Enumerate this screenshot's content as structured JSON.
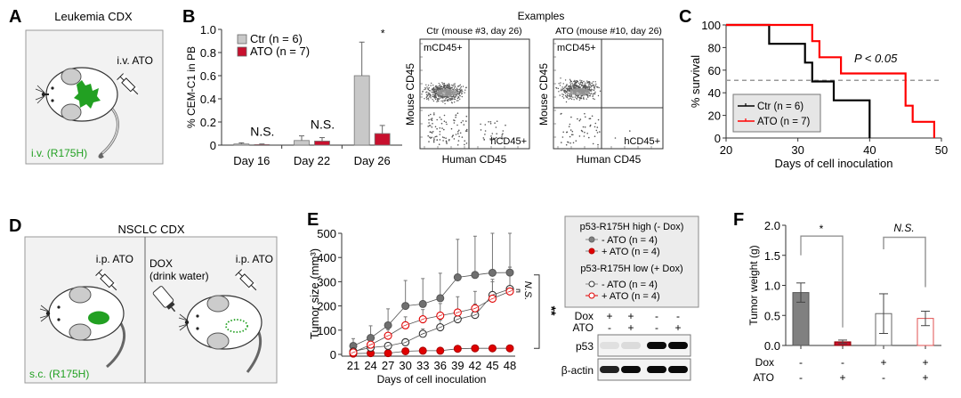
{
  "panel_labels": {
    "a": "A",
    "b": "B",
    "c": "C",
    "d": "D",
    "e": "E",
    "f": "F"
  },
  "panel_a": {
    "title": "Leukemia CDX",
    "injection_label": "i.v. ATO",
    "cell_label": "i.v. (R175H)",
    "colors": {
      "tumor": "#22a022",
      "box_bg": "#f2f2f2",
      "box_border": "#888888"
    }
  },
  "panel_d": {
    "title": "NSCLC CDX",
    "left": {
      "injection_label": "i.p. ATO",
      "cell_label": "s.c. (R175H)"
    },
    "right": {
      "dox_label": "DOX",
      "dox_sublabel": "(drink water)",
      "injection_label": "i.p. ATO"
    }
  },
  "flow": {
    "title": "Examples",
    "xlabel": "Human CD45",
    "ylabel": "Mouse CD45",
    "plots": [
      {
        "title": "Ctr (mouse #3, day 26)",
        "q_upper_left": "mCD45+",
        "q_lower_right": "hCD45+"
      },
      {
        "title": "ATO (mouse #10, day 26)",
        "q_upper_left": "mCD45+",
        "q_lower_right": "hCD45+"
      }
    ]
  },
  "western": {
    "row_labels": [
      "Dox",
      "ATO"
    ],
    "lanes": [
      {
        "dox": "+",
        "ato": "-"
      },
      {
        "dox": "+",
        "ato": "+"
      },
      {
        "dox": "-",
        "ato": "-"
      },
      {
        "dox": "-",
        "ato": "+"
      }
    ],
    "blots": [
      {
        "name": "p53",
        "intensity": [
          0.05,
          0.07,
          1.0,
          1.0
        ]
      },
      {
        "name": "β-actin",
        "intensity": [
          0.9,
          1.0,
          1.0,
          1.0
        ]
      }
    ]
  },
  "chart_data": [
    {
      "id": "B",
      "type": "bar",
      "title": "",
      "xlabel": "",
      "ylabel": "% CEM-C1 in PB",
      "ylim": [
        0,
        1.0
      ],
      "yticks": [
        "0",
        "0.2",
        "0.4",
        "0.6",
        "0.8",
        "1.0"
      ],
      "categories": [
        "Day 16",
        "Day 22",
        "Day 26"
      ],
      "series": [
        {
          "name": "Ctr (n =  6)",
          "color": "#c8c8c8",
          "values": [
            0.01,
            0.04,
            0.6
          ],
          "errors": [
            0.01,
            0.04,
            0.29
          ]
        },
        {
          "name": "ATO (n = 7)",
          "color": "#c8102e",
          "values": [
            0.005,
            0.035,
            0.1
          ],
          "errors": [
            0.005,
            0.03,
            0.07
          ]
        }
      ],
      "annotations": [
        "N.S.",
        "N.S.",
        "*"
      ],
      "legend": "top-left"
    },
    {
      "id": "C",
      "type": "line",
      "title": "",
      "xlabel": "Days of cell inoculation",
      "ylabel": "% survival",
      "xlim": [
        20,
        50
      ],
      "ylim": [
        0,
        100
      ],
      "xticks": [
        "20",
        "30",
        "40",
        "50"
      ],
      "yticks": [
        "0",
        "20",
        "40",
        "60",
        "80",
        "100"
      ],
      "series": [
        {
          "name": "Ctr (n = 6)",
          "color": "#000000",
          "x": [
            20,
            26,
            26,
            31,
            31,
            32,
            32,
            35,
            35,
            40,
            40
          ],
          "y": [
            100,
            100,
            83.3,
            83.3,
            66.7,
            66.7,
            50,
            50,
            33.3,
            33.3,
            0
          ]
        },
        {
          "name": "ATO (n = 7)",
          "color": "#ff0000",
          "x": [
            20,
            32,
            32,
            33,
            33,
            36,
            36,
            45,
            45,
            46,
            46,
            49,
            49
          ],
          "y": [
            100,
            100,
            85.7,
            85.7,
            71.4,
            71.4,
            57.1,
            57.1,
            28.6,
            28.6,
            14.3,
            14.3,
            0
          ]
        }
      ],
      "reference_line_y": 51,
      "annotation": "P < 0.05",
      "legend": "bottom-left"
    },
    {
      "id": "E",
      "type": "line",
      "title": "",
      "xlabel": "Days of cell inoculation",
      "ylabel": "Tumor size (mm³)",
      "xlim": [
        21,
        48
      ],
      "ylim": [
        0,
        500
      ],
      "x": [
        21,
        24,
        27,
        30,
        33,
        36,
        39,
        42,
        45,
        48
      ],
      "xticks": [
        "21",
        "24",
        "27",
        "30",
        "33",
        "36",
        "39",
        "42",
        "45",
        "48"
      ],
      "yticks": [
        "0",
        "100",
        "200",
        "300",
        "400",
        "500"
      ],
      "legend_groups": [
        {
          "title": "p53-R175H high (- Dox)",
          "items": [
            "- ATO (n = 4)",
            "+ ATO (n = 4)"
          ]
        },
        {
          "title": "p53-R175H low (+ Dox)",
          "items": [
            "- ATO (n = 4)",
            "+ ATO (n = 4)"
          ]
        }
      ],
      "series": [
        {
          "name": "high - ATO",
          "marker": "filled",
          "color": "#707070",
          "values": [
            35,
            68,
            120,
            200,
            208,
            232,
            318,
            328,
            337,
            338
          ],
          "errors": [
            30,
            50,
            68,
            105,
            105,
            103,
            157,
            160,
            165,
            165
          ]
        },
        {
          "name": "high + ATO",
          "marker": "filled",
          "color": "#e00000",
          "values": [
            3,
            5,
            5,
            13,
            15,
            15,
            23,
            25,
            25,
            25
          ],
          "errors": [
            0,
            0,
            0,
            0,
            0,
            0,
            0,
            0,
            0,
            0
          ]
        },
        {
          "name": "low - ATO",
          "marker": "open",
          "color": "#333333",
          "values": [
            12,
            28,
            35,
            50,
            85,
            112,
            145,
            163,
            245,
            270
          ],
          "errors": [
            5,
            8,
            10,
            15,
            20,
            30,
            40,
            45,
            55,
            90
          ]
        },
        {
          "name": "low + ATO",
          "marker": "open",
          "color": "#e00000",
          "values": [
            8,
            40,
            77,
            120,
            145,
            160,
            173,
            190,
            230,
            260
          ],
          "errors": [
            5,
            10,
            25,
            35,
            40,
            50,
            65,
            70,
            80,
            100
          ]
        }
      ],
      "annotations": [
        "N.S.",
        "**"
      ]
    },
    {
      "id": "F",
      "type": "bar",
      "title": "",
      "xlabel": "",
      "ylabel": "Tumor weight (g)",
      "ylim": [
        0,
        2.0
      ],
      "yticks": [
        "0.0",
        "0.5",
        "1.0",
        "1.5",
        "2.0"
      ],
      "categories": [
        "- Dox / - ATO",
        "- Dox / + ATO",
        "+ Dox / - ATO",
        "+ Dox / + ATO"
      ],
      "dox": [
        "-",
        "-",
        "+",
        "+"
      ],
      "ato": [
        "-",
        "+",
        "-",
        "+"
      ],
      "row_labels": [
        "Dox",
        "ATO"
      ],
      "values": [
        0.88,
        0.06,
        0.53,
        0.45
      ],
      "errors": [
        0.16,
        0.03,
        0.33,
        0.12
      ],
      "fills": [
        "#808080",
        "#c8102e",
        "#ffffff",
        "#ffffff"
      ],
      "strokes": [
        "#555555",
        "#8a0000",
        "#666666",
        "#e05050"
      ],
      "annotations": [
        {
          "text": "*",
          "between": [
            0,
            1
          ]
        },
        {
          "text": "N.S.",
          "between": [
            2,
            3
          ]
        }
      ]
    }
  ]
}
